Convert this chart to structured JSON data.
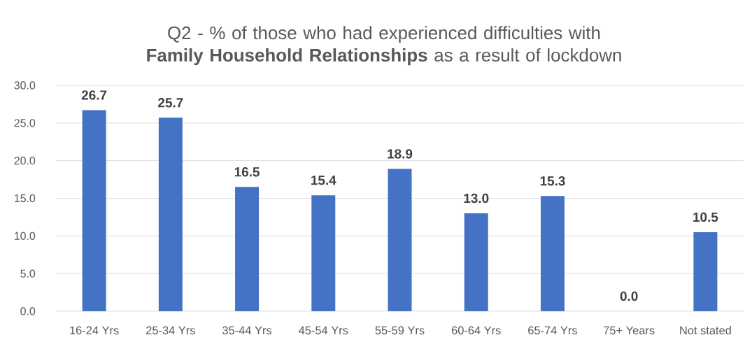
{
  "chart_data": {
    "type": "bar",
    "title": "Q2 - % of those who had experienced difficulties with **Family Household Relationships** as a result of lockdown",
    "categories": [
      "16-24 Yrs",
      "25-34 Yrs",
      "35-44 Yrs",
      "45-54 Yrs",
      "55-59 Yrs",
      "60-64 Yrs",
      "65-74 Yrs",
      "75+ Years",
      "Not stated"
    ],
    "values": [
      26.7,
      25.7,
      16.5,
      15.4,
      18.9,
      13.0,
      15.3,
      0.0,
      10.5
    ],
    "value_labels": [
      "26.7",
      "25.7",
      "16.5",
      "15.4",
      "18.9",
      "13.0",
      "15.3",
      "0.0",
      "10.5"
    ],
    "color": "#4472c4",
    "ylim": [
      0,
      30
    ],
    "yticks": [
      {
        "value": 0,
        "label": "0.0"
      },
      {
        "value": 5,
        "label": "5.0"
      },
      {
        "value": 10,
        "label": "10.0"
      },
      {
        "value": 15,
        "label": "15.0"
      },
      {
        "value": 20,
        "label": "20.0"
      },
      {
        "value": 25,
        "label": "25.0"
      },
      {
        "value": 30,
        "label": "30.0"
      }
    ],
    "grid": "y"
  }
}
